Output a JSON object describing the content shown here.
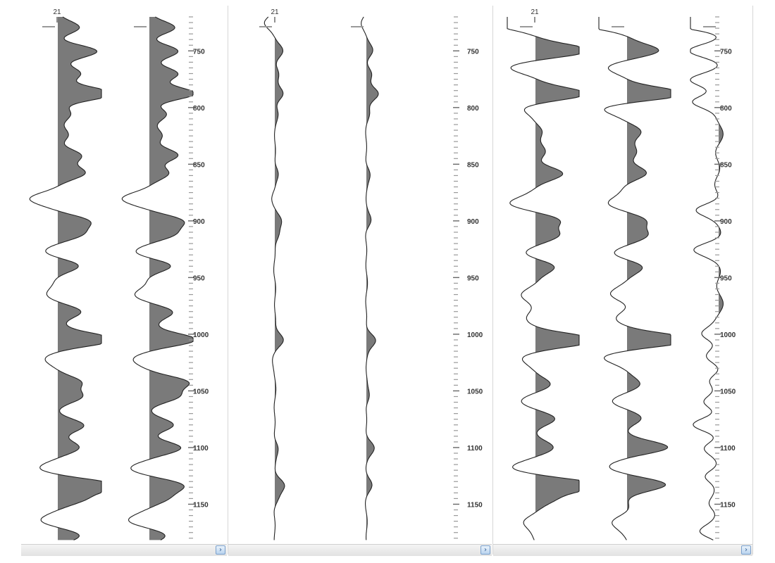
{
  "colors": {
    "trace": "#222222",
    "fill": "#7a7a7a",
    "tick": "#9a9a9a",
    "label": "#333333"
  },
  "depth_axis": {
    "start": 720,
    "end": 1182,
    "labels": [
      "750",
      "800",
      "850",
      "900",
      "950",
      "1000",
      "1050",
      "1100",
      "1150"
    ]
  },
  "scroll_icon": "chevron-right-icon",
  "panels": [
    {
      "trace_header": "21",
      "tracks": [
        {
          "name": "trace-a",
          "gain": 1.0,
          "phase": 0,
          "peaks": [
            [
              730,
              30
            ],
            [
              750,
              55
            ],
            [
              770,
              34
            ],
            [
              788,
              75
            ],
            [
              805,
              22
            ],
            [
              825,
              18
            ],
            [
              842,
              28
            ],
            [
              858,
              40
            ],
            [
              880,
              -40
            ],
            [
              900,
              42
            ],
            [
              912,
              32
            ],
            [
              928,
              -22
            ],
            [
              940,
              28
            ],
            [
              965,
              -18
            ],
            [
              980,
              38
            ],
            [
              1005,
              80
            ],
            [
              1022,
              -22
            ],
            [
              1042,
              38
            ],
            [
              1055,
              30
            ],
            [
              1080,
              32
            ],
            [
              1100,
              35
            ],
            [
              1118,
              -28
            ],
            [
              1133,
              85
            ],
            [
              1145,
              30
            ],
            [
              1165,
              -25
            ],
            [
              1178,
              30
            ]
          ]
        },
        {
          "name": "trace-b",
          "gain": 1.0,
          "phase": 0.7,
          "peaks": [
            [
              730,
              38
            ],
            [
              750,
              35
            ],
            [
              770,
              42
            ],
            [
              788,
              65
            ],
            [
              805,
              25
            ],
            [
              825,
              20
            ],
            [
              842,
              34
            ],
            [
              858,
              32
            ],
            [
              880,
              -36
            ],
            [
              900,
              40
            ],
            [
              912,
              34
            ],
            [
              928,
              -25
            ],
            [
              940,
              35
            ],
            [
              965,
              -24
            ],
            [
              980,
              34
            ],
            [
              1005,
              70
            ],
            [
              1022,
              -25
            ],
            [
              1042,
              55
            ],
            [
              1055,
              35
            ],
            [
              1080,
              30
            ],
            [
              1100,
              50
            ],
            [
              1118,
              -28
            ],
            [
              1133,
              45
            ],
            [
              1145,
              20
            ],
            [
              1165,
              -30
            ],
            [
              1178,
              26
            ]
          ]
        }
      ],
      "depth_labels": true
    },
    {
      "trace_header": "21",
      "tracks": [
        {
          "name": "trace-c",
          "gain": 0.25,
          "phase": 1.3,
          "peaks": [
            [
              725,
              -60
            ],
            [
              750,
              40
            ],
            [
              770,
              25
            ],
            [
              788,
              50
            ],
            [
              805,
              15
            ],
            [
              858,
              25
            ],
            [
              880,
              -15
            ],
            [
              900,
              30
            ],
            [
              912,
              25
            ],
            [
              1005,
              55
            ],
            [
              1022,
              -15
            ],
            [
              1100,
              20
            ],
            [
              1133,
              50
            ],
            [
              1145,
              18
            ]
          ]
        },
        {
          "name": "trace-d",
          "gain": 0.25,
          "phase": 2.1,
          "peaks": [
            [
              725,
              -30
            ],
            [
              750,
              35
            ],
            [
              770,
              30
            ],
            [
              788,
              70
            ],
            [
              805,
              12
            ],
            [
              858,
              20
            ],
            [
              900,
              25
            ],
            [
              1005,
              55
            ],
            [
              1055,
              20
            ],
            [
              1100,
              40
            ],
            [
              1133,
              30
            ]
          ]
        }
      ],
      "depth_labels": true
    },
    {
      "trace_header": "21",
      "tracks": [
        {
          "name": "trace-e",
          "gain": 0.95,
          "phase": 2.9,
          "peaks": [
            [
              725,
              -65
            ],
            [
              750,
              85
            ],
            [
              765,
              -40
            ],
            [
              788,
              80
            ],
            [
              800,
              -25
            ],
            [
              820,
              15
            ],
            [
              840,
              15
            ],
            [
              858,
              35
            ],
            [
              885,
              -38
            ],
            [
              900,
              38
            ],
            [
              912,
              35
            ],
            [
              928,
              -20
            ],
            [
              940,
              30
            ],
            [
              965,
              -15
            ],
            [
              985,
              -15
            ],
            [
              1005,
              90
            ],
            [
              1020,
              -20
            ],
            [
              1045,
              22
            ],
            [
              1060,
              -18
            ],
            [
              1075,
              25
            ],
            [
              1100,
              22
            ],
            [
              1118,
              -30
            ],
            [
              1133,
              90
            ],
            [
              1145,
              30
            ],
            [
              1165,
              -22
            ]
          ]
        },
        {
          "name": "trace-f",
          "gain": 0.95,
          "phase": 3.7,
          "peaks": [
            [
              725,
              -75
            ],
            [
              750,
              50
            ],
            [
              765,
              -35
            ],
            [
              788,
              95
            ],
            [
              800,
              -40
            ],
            [
              820,
              20
            ],
            [
              840,
              15
            ],
            [
              858,
              25
            ],
            [
              885,
              -30
            ],
            [
              900,
              30
            ],
            [
              912,
              25
            ],
            [
              928,
              -20
            ],
            [
              940,
              25
            ],
            [
              965,
              -20
            ],
            [
              985,
              -18
            ],
            [
              1005,
              95
            ],
            [
              1020,
              -30
            ],
            [
              1045,
              20
            ],
            [
              1060,
              -25
            ],
            [
              1075,
              20
            ],
            [
              1100,
              60
            ],
            [
              1118,
              -25
            ],
            [
              1133,
              55
            ],
            [
              1165,
              -20
            ]
          ]
        },
        {
          "name": "trace-g",
          "gain": 1.0,
          "phase": 4.5,
          "peaks": [
            [
              725,
              -80
            ],
            [
              750,
              -40
            ],
            [
              775,
              -35
            ],
            [
              795,
              -40
            ],
            [
              890,
              -35
            ],
            [
              925,
              -30
            ],
            [
              1000,
              -25
            ],
            [
              1020,
              -12
            ],
            [
              1040,
              -15
            ],
            [
              1060,
              -25
            ],
            [
              1080,
              -30
            ],
            [
              1100,
              -20
            ],
            [
              1125,
              -25
            ],
            [
              1150,
              -15
            ],
            [
              1175,
              -25
            ]
          ]
        }
      ],
      "depth_labels": true
    }
  ]
}
